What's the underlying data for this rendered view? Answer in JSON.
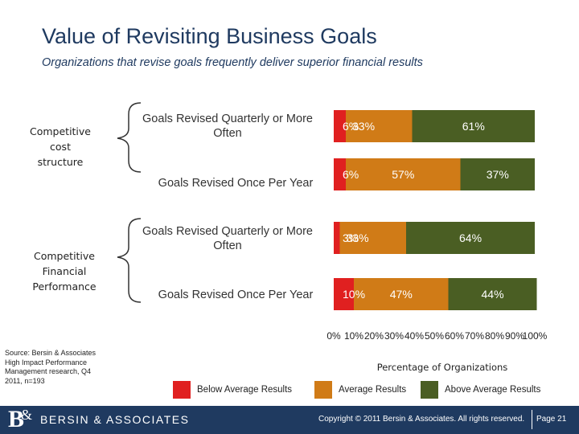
{
  "header": {
    "title": "Value of Revisiting Business Goals",
    "subtitle": "Organizations that revise goals frequently deliver superior financial results"
  },
  "groups": [
    {
      "label_lines": [
        "Competitive",
        "cost",
        "structure"
      ]
    },
    {
      "label_lines": [
        "Competitive",
        "Financial",
        "Performance"
      ]
    }
  ],
  "chart_data": {
    "type": "bar",
    "orientation": "horizontal",
    "stacked": true,
    "categories": [
      "Goals Revised Quarterly or More Often",
      "Goals Revised Once Per Year",
      "Goals Revised Quarterly or More Often",
      "Goals Revised Once Per Year"
    ],
    "category_groups": [
      "Competitive cost structure",
      "Competitive cost structure",
      "Competitive Financial Performance",
      "Competitive Financial Performance"
    ],
    "series": [
      {
        "name": "Below Average Results",
        "color": "#e02020",
        "values": [
          6,
          6,
          3,
          10
        ],
        "labels": [
          "6%",
          "6%",
          "3%",
          "10%"
        ]
      },
      {
        "name": "Average Results",
        "color": "#d07b17",
        "values": [
          33,
          57,
          33,
          47
        ],
        "labels": [
          "33%",
          "57%",
          "33%",
          "47%"
        ]
      },
      {
        "name": "Above Average Results",
        "color": "#4a5e23",
        "values": [
          61,
          37,
          64,
          44
        ],
        "labels": [
          "61%",
          "37%",
          "64%",
          "44%"
        ]
      }
    ],
    "xlim": [
      0,
      100
    ],
    "x_ticks": [
      "0%",
      "10%",
      "20%",
      "30%",
      "40%",
      "50%",
      "60%",
      "70%",
      "80%",
      "90%",
      "100%"
    ],
    "xlabel": "Percentage of Organizations",
    "ylabel": "",
    "legend_position": "bottom"
  },
  "source": "Source: Bersin & Associates High Impact Performance Management research, Q4 2011, n=193",
  "footer": {
    "logo_mark": "B",
    "logo_amp": "&",
    "logo_text": "BERSIN & ASSOCIATES",
    "copyright": "Copyright © 2011 Bersin & Associates. All rights reserved.",
    "page": "Page 21"
  }
}
